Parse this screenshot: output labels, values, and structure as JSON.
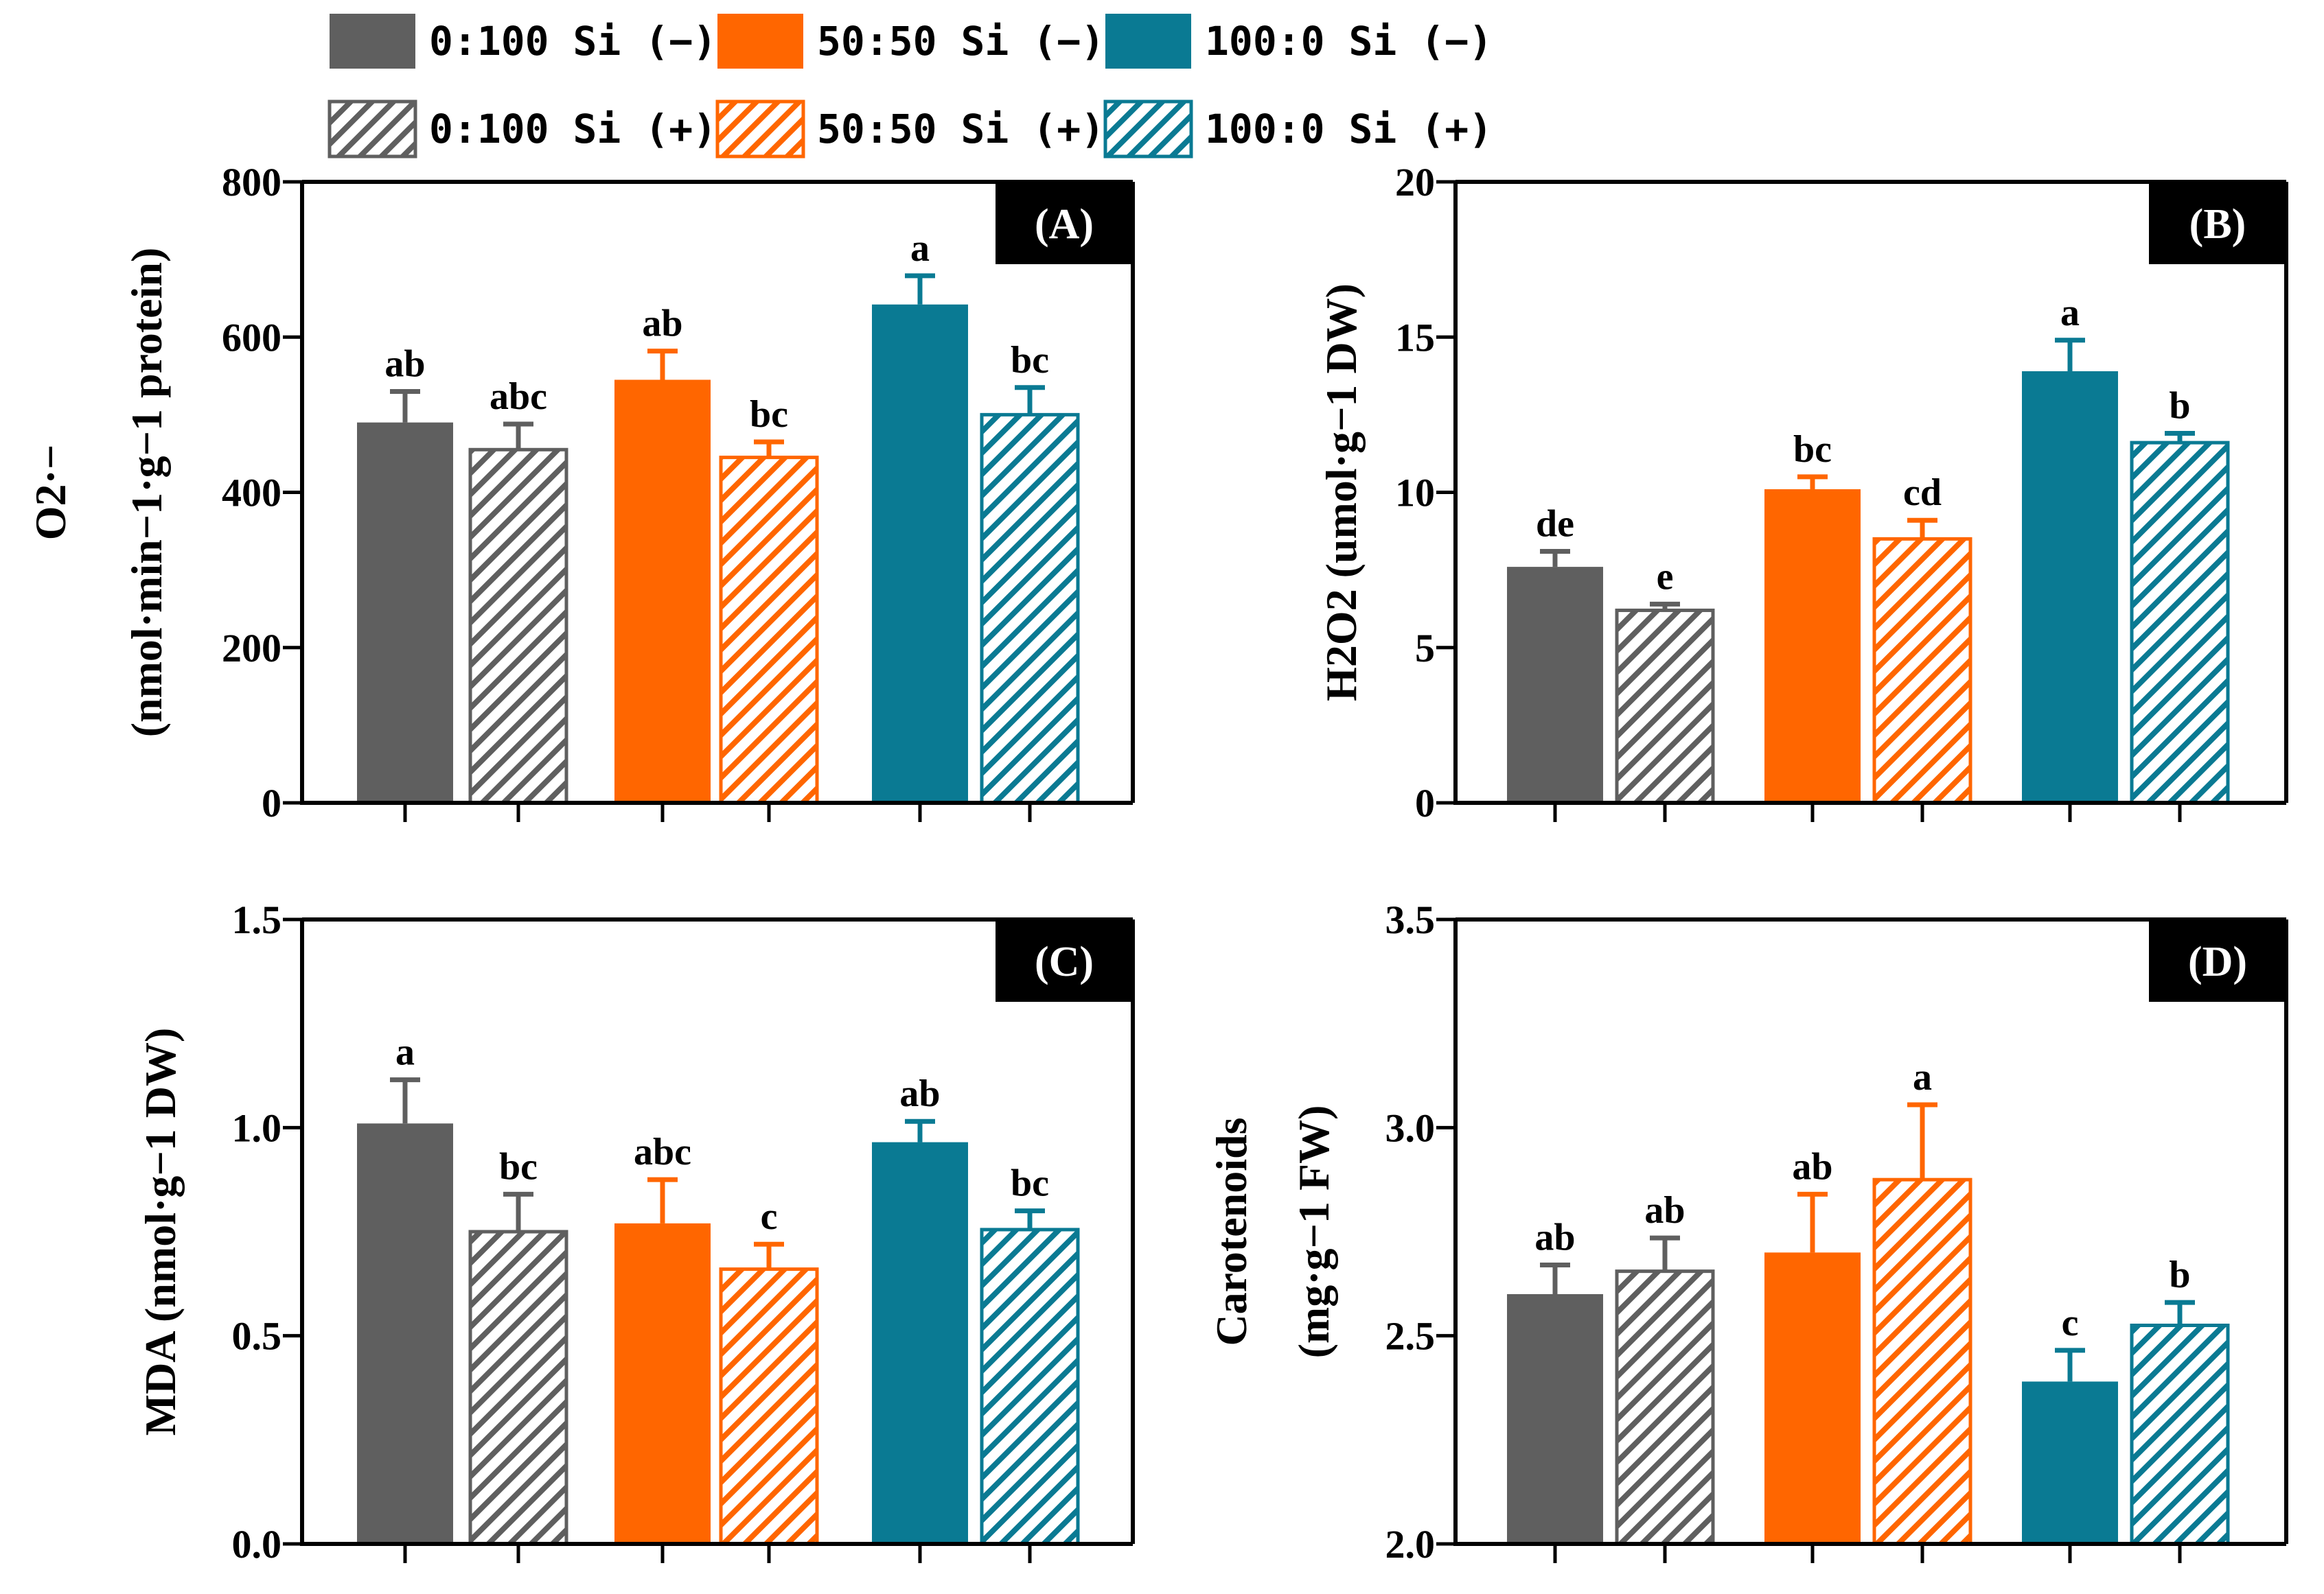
{
  "legend": [
    {
      "label": "0:100 Si (−)",
      "color": "#5f5f5f",
      "hatched": false
    },
    {
      "label": "50:50 Si (−)",
      "color": "#ff6600",
      "hatched": false
    },
    {
      "label": "100:0 Si (−)",
      "color": "#0a7a93",
      "hatched": false
    },
    {
      "label": "0:100 Si (+)",
      "color": "#5f5f5f",
      "hatched": true
    },
    {
      "label": "50:50 Si (+)",
      "color": "#ff6600",
      "hatched": true
    },
    {
      "label": "100:0 Si (+)",
      "color": "#0a7a93",
      "hatched": true
    }
  ],
  "colors": {
    "gray": "#5f5f5f",
    "orange": "#ff6600",
    "teal": "#0a7a93",
    "tag_bg": "#000000"
  },
  "chart_data": [
    {
      "type": "bar",
      "panel": "(A)",
      "series_order": [
        "0:100 Si (−)",
        "0:100 Si (+)",
        "50:50 Si (−)",
        "50:50 Si (+)",
        "100:0 Si (−)",
        "100:0 Si (+)"
      ],
      "values": [
        490,
        455,
        545,
        445,
        642,
        500
      ],
      "errors": [
        40,
        33,
        37,
        20,
        37,
        35
      ],
      "significance": [
        "ab",
        "abc",
        "ab",
        "bc",
        "a",
        "bc"
      ],
      "ylim": [
        0,
        800
      ],
      "yticks": [
        "0",
        "200",
        "400",
        "600",
        "800"
      ],
      "ylabel_line1": "O2·−",
      "ylabel_line2": "(nmol·min−1·g−1 protein)"
    },
    {
      "type": "bar",
      "panel": "(B)",
      "series_order": [
        "0:100 Si (−)",
        "0:100 Si (+)",
        "50:50 Si (−)",
        "50:50 Si (+)",
        "100:0 Si (−)",
        "100:0 Si (+)"
      ],
      "values": [
        7.6,
        6.2,
        10.1,
        8.5,
        13.9,
        11.6
      ],
      "errors": [
        0.5,
        0.2,
        0.4,
        0.6,
        1.0,
        0.3
      ],
      "significance": [
        "de",
        "e",
        "bc",
        "cd",
        "a",
        "b"
      ],
      "ylim": [
        0,
        20
      ],
      "yticks": [
        "0",
        "5",
        "10",
        "15",
        "20"
      ],
      "ylabel": "H2O2 (umol·g−1 DW)"
    },
    {
      "type": "bar",
      "panel": "(C)",
      "series_order": [
        "0:100 Si (−)",
        "0:100 Si (+)",
        "50:50 Si (−)",
        "50:50 Si (+)",
        "100:0 Si (−)",
        "100:0 Si (+)"
      ],
      "values": [
        1.01,
        0.75,
        0.77,
        0.66,
        0.965,
        0.755
      ],
      "errors": [
        0.105,
        0.09,
        0.105,
        0.06,
        0.05,
        0.045
      ],
      "significance": [
        "a",
        "bc",
        "abc",
        "c",
        "ab",
        "bc"
      ],
      "ylim": [
        0,
        1.5
      ],
      "yticks": [
        "0.0",
        "0.5",
        "1.0",
        "1.5"
      ],
      "ylabel": "MDA (nmol·g−1 DW)"
    },
    {
      "type": "bar",
      "panel": "(D)",
      "series_order": [
        "0:100 Si (−)",
        "0:100 Si (+)",
        "50:50 Si (−)",
        "50:50 Si (+)",
        "100:0 Si (−)",
        "100:0 Si (+)"
      ],
      "values": [
        2.6,
        2.655,
        2.7,
        2.875,
        2.39,
        2.525
      ],
      "errors": [
        0.07,
        0.08,
        0.14,
        0.18,
        0.075,
        0.055
      ],
      "significance": [
        "ab",
        "ab",
        "ab",
        "a",
        "c",
        "b"
      ],
      "ylim": [
        2.0,
        3.5
      ],
      "yticks": [
        "2.0",
        "2.5",
        "3.0",
        "3.5"
      ],
      "ylabel_line1": "Carotenoids",
      "ylabel_line2": "(mg·g−1 FW)"
    }
  ]
}
